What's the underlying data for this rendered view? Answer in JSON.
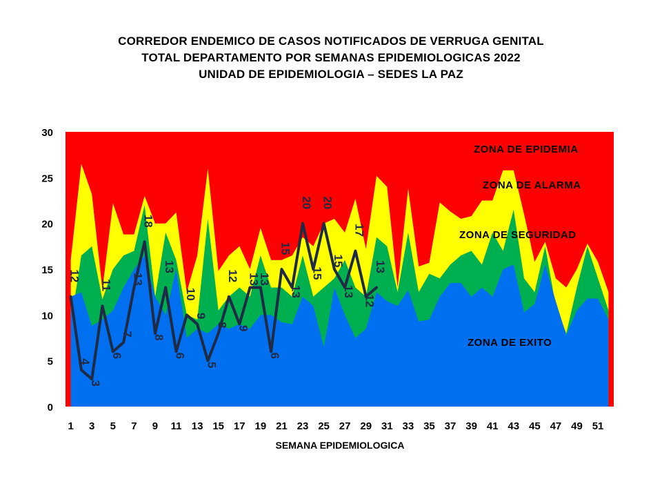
{
  "chart_data": {
    "type": "area",
    "title": [
      "CORREDOR ENDEMICO  DE CASOS NOTIFICADOS  DE VERRUGA  GENITAL",
      "TOTAL DEPARTAMENTO  POR SEMANAS EPIDEMIOLOGICAS  2022",
      "UNIDAD  DE EPIDEMIOLOGIA  – SEDES LA PAZ"
    ],
    "xlabel": "SEMANA EPIDEMIOLOGICA",
    "ylabel": "",
    "ylim": [
      0,
      30
    ],
    "yticks": [
      0,
      5,
      10,
      15,
      20,
      25,
      30
    ],
    "xlim": [
      0.5,
      52.5
    ],
    "xticks": [
      1,
      3,
      5,
      7,
      9,
      11,
      13,
      15,
      17,
      19,
      21,
      23,
      25,
      27,
      29,
      31,
      33,
      35,
      37,
      39,
      41,
      43,
      45,
      47,
      49,
      51
    ],
    "weeks": [
      1,
      2,
      3,
      4,
      5,
      6,
      7,
      8,
      9,
      10,
      11,
      12,
      13,
      14,
      15,
      16,
      17,
      18,
      19,
      20,
      21,
      22,
      23,
      24,
      25,
      26,
      27,
      28,
      29,
      30,
      31,
      32,
      33,
      34,
      35,
      36,
      37,
      38,
      39,
      40,
      41,
      42,
      43,
      44,
      45,
      46,
      47,
      48,
      49,
      50,
      51,
      52
    ],
    "zones": [
      {
        "name": "ZONA DE EPIDEMIA",
        "color": "#ff0000",
        "top": 30
      },
      {
        "name": "ZONA DE ALARMA",
        "color": "#ffff00",
        "values": [
          16,
          26.5,
          23.2,
          12.8,
          22.2,
          18.8,
          18.8,
          23,
          20,
          20,
          21.2,
          12.5,
          16.5,
          26,
          14.8,
          16.5,
          17.5,
          15,
          19.5,
          16,
          16,
          16.5,
          18.5,
          17.5,
          20,
          20.5,
          19,
          22.7,
          17.2,
          25.2,
          24,
          13,
          23.8,
          15.3,
          15.7,
          22.3,
          21.3,
          20.5,
          20.8,
          22.5,
          22.5,
          25.8,
          25.8,
          21,
          15.8,
          18,
          14,
          13,
          15,
          17.8,
          15.8,
          12.5
        ]
      },
      {
        "name": "ZONA DE  SEGURIDAD",
        "color": "#00b050",
        "values": [
          9,
          16.5,
          17.5,
          11.7,
          15,
          16.5,
          17,
          22,
          12,
          19,
          16,
          10,
          9.5,
          20.5,
          10.5,
          12,
          13,
          12,
          16.5,
          13,
          13,
          12,
          16.5,
          12,
          13,
          14,
          16,
          13,
          12,
          18.5,
          17.5,
          12.5,
          19,
          12.5,
          14.5,
          14,
          15.5,
          16.5,
          17,
          15.5,
          19,
          17,
          21.5,
          14,
          12.5,
          17.5,
          11,
          8,
          13,
          17.5,
          14,
          10.5
        ]
      },
      {
        "name": "ZONA DE  EXITO",
        "color": "#0070f0",
        "values": [
          12,
          12.5,
          8.8,
          9.5,
          10.5,
          13,
          15,
          16.5,
          12,
          10,
          15,
          7.5,
          8.5,
          8,
          9,
          8.5,
          9,
          8.5,
          10,
          10,
          9.2,
          9,
          12,
          11,
          6.5,
          13,
          10,
          7.5,
          8.5,
          12.5,
          11.5,
          11,
          12.7,
          9.3,
          9.5,
          12,
          13.5,
          13.5,
          12,
          13,
          12,
          15,
          15.5,
          10.3,
          11.2,
          15.5,
          11.5,
          7.8,
          10.5,
          11.8,
          11.8,
          9.5
        ]
      }
    ],
    "series": [
      {
        "name": "2022",
        "color": "#1f2a44",
        "values": [
          12,
          4,
          3,
          11,
          6,
          7,
          13,
          18,
          8,
          13,
          6,
          10,
          9,
          5,
          8,
          12,
          9,
          13,
          13,
          6,
          15,
          13,
          20,
          15,
          20,
          15,
          13,
          17,
          12,
          13
        ]
      }
    ],
    "zone_labels": [
      "ZONA DE EPIDEMIA",
      "ZONA DE ALARMA",
      "ZONA DE  SEGURIDAD",
      "ZONA DE  EXITO"
    ]
  }
}
